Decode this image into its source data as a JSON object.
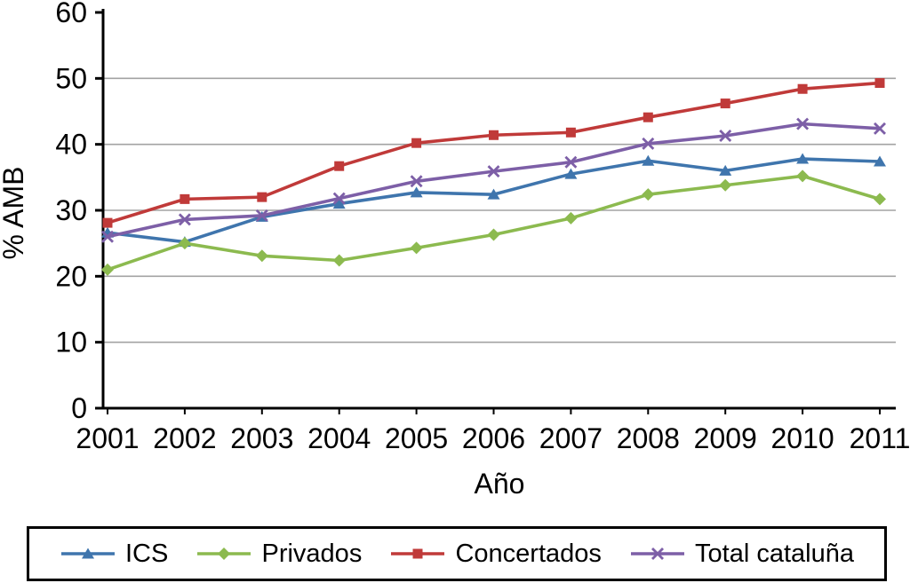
{
  "chart_data": {
    "type": "line",
    "title": "",
    "xlabel": "Año",
    "ylabel": "% AMB",
    "x": [
      "2001",
      "2002",
      "2003",
      "2004",
      "2005",
      "2006",
      "2007",
      "2008",
      "2009",
      "2010",
      "2011"
    ],
    "yticks": [
      0,
      10,
      20,
      30,
      40,
      50,
      60
    ],
    "ylim": [
      0,
      60
    ],
    "grid": true,
    "legend_position": "bottom",
    "series": [
      {
        "name": "ICS",
        "color": "#3f75ad",
        "marker": "triangle",
        "values": [
          26.6,
          25.2,
          29.0,
          31.0,
          32.7,
          32.4,
          35.5,
          37.5,
          36.0,
          37.8,
          37.4
        ]
      },
      {
        "name": "Privados",
        "color": "#8cba4f",
        "marker": "diamond",
        "values": [
          21.0,
          25.0,
          23.1,
          22.4,
          24.3,
          26.3,
          28.8,
          32.4,
          33.8,
          35.2,
          31.7
        ]
      },
      {
        "name": "Concertados",
        "color": "#c03a39",
        "marker": "square",
        "values": [
          28.1,
          31.7,
          32.0,
          36.7,
          40.2,
          41.4,
          41.8,
          44.1,
          46.2,
          48.4,
          49.3
        ]
      },
      {
        "name": "Total cataluña",
        "color": "#7d5fa7",
        "marker": "x",
        "values": [
          26.0,
          28.6,
          29.2,
          31.8,
          34.4,
          35.9,
          37.3,
          40.1,
          41.3,
          43.1,
          42.4
        ]
      }
    ],
    "colors": {
      "grid": "#a3a3a3",
      "axis": "#000000",
      "text": "#000000"
    }
  }
}
